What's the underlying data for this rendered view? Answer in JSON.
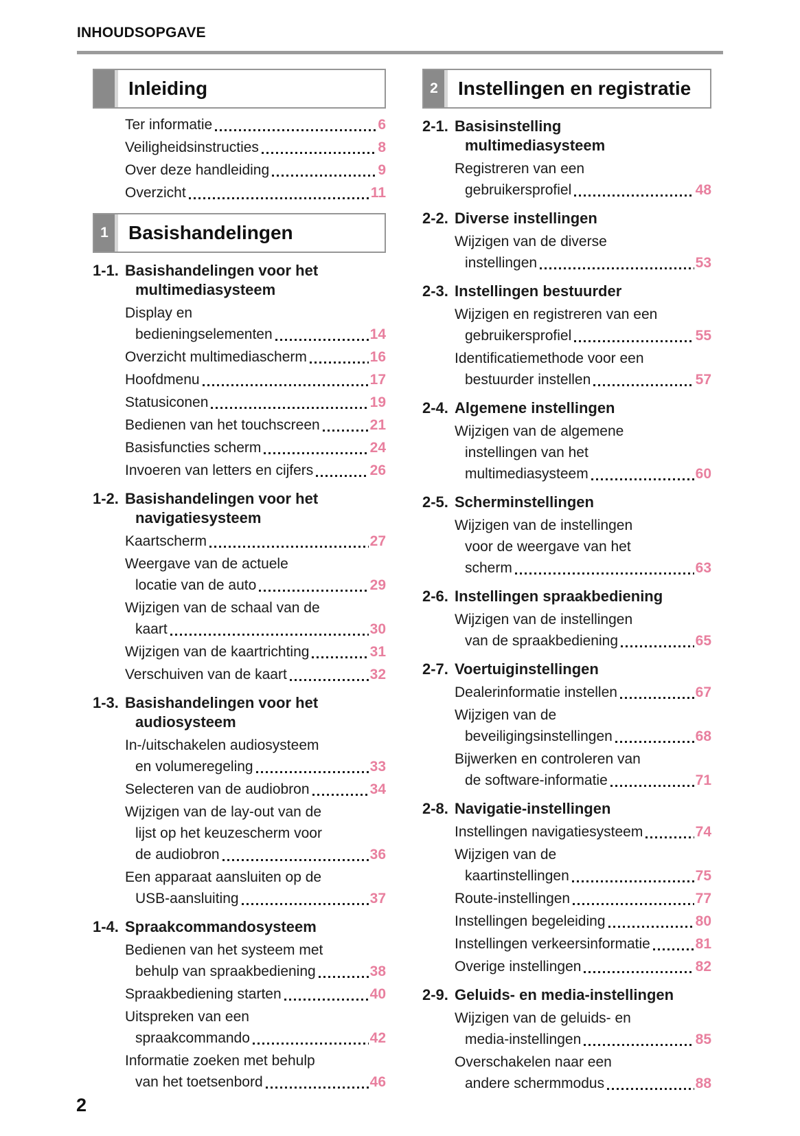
{
  "page": {
    "header": "INHOUDSOPGAVE",
    "footer_page_number": "2",
    "accent_color": "#e87f9e",
    "tab_color": "#8a8a8a"
  },
  "columns": [
    {
      "blocks": [
        {
          "tab": "",
          "title": "Inleiding",
          "entries": [
            {
              "lines": [
                "Ter informatie"
              ],
              "page": "6"
            },
            {
              "lines": [
                "Veiligheidsinstructies"
              ],
              "page": "8"
            },
            {
              "lines": [
                "Over deze handleiding"
              ],
              "page": "9"
            },
            {
              "lines": [
                "Overzicht"
              ],
              "page": "11"
            }
          ],
          "sections": []
        },
        {
          "tab": "1",
          "title": "Basishandelingen",
          "entries": [],
          "sections": [
            {
              "number": "1-1.",
              "title_lines": [
                "Basishandelingen voor het",
                "multimediasysteem"
              ],
              "entries": [
                {
                  "lines": [
                    "Display en",
                    "bedieningselementen"
                  ],
                  "page": "14"
                },
                {
                  "lines": [
                    "Overzicht multimediascherm"
                  ],
                  "page": "16"
                },
                {
                  "lines": [
                    "Hoofdmenu"
                  ],
                  "page": "17"
                },
                {
                  "lines": [
                    "Statusiconen"
                  ],
                  "page": "19"
                },
                {
                  "lines": [
                    "Bedienen van het touchscreen"
                  ],
                  "page": "21"
                },
                {
                  "lines": [
                    "Basisfuncties scherm"
                  ],
                  "page": "24"
                },
                {
                  "lines": [
                    "Invoeren van letters en cijfers"
                  ],
                  "page": "26"
                }
              ]
            },
            {
              "number": "1-2.",
              "title_lines": [
                "Basishandelingen voor het",
                "navigatiesysteem"
              ],
              "entries": [
                {
                  "lines": [
                    "Kaartscherm"
                  ],
                  "page": "27"
                },
                {
                  "lines": [
                    "Weergave van de actuele",
                    "locatie van de auto"
                  ],
                  "page": "29"
                },
                {
                  "lines": [
                    "Wijzigen van de schaal van de",
                    "kaart"
                  ],
                  "page": "30"
                },
                {
                  "lines": [
                    "Wijzigen van de kaartrichting"
                  ],
                  "page": "31"
                },
                {
                  "lines": [
                    "Verschuiven van de kaart"
                  ],
                  "page": "32"
                }
              ]
            },
            {
              "number": "1-3.",
              "title_lines": [
                "Basishandelingen voor het",
                "audiosysteem"
              ],
              "entries": [
                {
                  "lines": [
                    "In-/uitschakelen audiosysteem",
                    "en volumeregeling"
                  ],
                  "page": "33"
                },
                {
                  "lines": [
                    "Selecteren van de audiobron"
                  ],
                  "page": "34"
                },
                {
                  "lines": [
                    "Wijzigen van de lay-out van de",
                    "lijst op het keuzescherm voor",
                    "de audiobron"
                  ],
                  "page": "36"
                },
                {
                  "lines": [
                    "Een apparaat aansluiten op de",
                    "USB-aansluiting"
                  ],
                  "page": "37"
                }
              ]
            },
            {
              "number": "1-4.",
              "title_lines": [
                "Spraakcommandosysteem"
              ],
              "entries": [
                {
                  "lines": [
                    "Bedienen van het systeem met",
                    "behulp van spraakbediening"
                  ],
                  "page": "38"
                },
                {
                  "lines": [
                    "Spraakbediening starten"
                  ],
                  "page": "40"
                },
                {
                  "lines": [
                    "Uitspreken van een",
                    "spraakcommando"
                  ],
                  "page": "42"
                },
                {
                  "lines": [
                    "Informatie zoeken met behulp",
                    "van het toetsenbord"
                  ],
                  "page": "46"
                }
              ]
            }
          ]
        }
      ]
    },
    {
      "blocks": [
        {
          "tab": "2",
          "title": "Instellingen en registratie",
          "entries": [],
          "sections": [
            {
              "number": "2-1.",
              "title_lines": [
                "Basisinstelling",
                "multimediasysteem"
              ],
              "entries": [
                {
                  "lines": [
                    "Registreren van een",
                    "gebruikersprofiel"
                  ],
                  "page": "48"
                }
              ]
            },
            {
              "number": "2-2.",
              "title_lines": [
                "Diverse instellingen"
              ],
              "entries": [
                {
                  "lines": [
                    "Wijzigen van de diverse",
                    "instellingen"
                  ],
                  "page": "53"
                }
              ]
            },
            {
              "number": "2-3.",
              "title_lines": [
                "Instellingen bestuurder"
              ],
              "entries": [
                {
                  "lines": [
                    "Wijzigen en registreren van een",
                    "gebruikersprofiel"
                  ],
                  "page": "55"
                },
                {
                  "lines": [
                    "Identificatiemethode voor een",
                    "bestuurder instellen"
                  ],
                  "page": "57"
                }
              ]
            },
            {
              "number": "2-4.",
              "title_lines": [
                "Algemene instellingen"
              ],
              "entries": [
                {
                  "lines": [
                    "Wijzigen van de algemene",
                    "instellingen van het",
                    "multimediasysteem"
                  ],
                  "page": "60"
                }
              ]
            },
            {
              "number": "2-5.",
              "title_lines": [
                "Scherminstellingen"
              ],
              "entries": [
                {
                  "lines": [
                    "Wijzigen van de instellingen",
                    "voor de weergave van het",
                    "scherm"
                  ],
                  "page": "63"
                }
              ]
            },
            {
              "number": "2-6.",
              "title_lines": [
                "Instellingen spraakbediening"
              ],
              "entries": [
                {
                  "lines": [
                    "Wijzigen van de instellingen",
                    "van de spraakbediening"
                  ],
                  "page": "65"
                }
              ]
            },
            {
              "number": "2-7.",
              "title_lines": [
                "Voertuiginstellingen"
              ],
              "entries": [
                {
                  "lines": [
                    "Dealerinformatie instellen"
                  ],
                  "page": "67"
                },
                {
                  "lines": [
                    "Wijzigen van de",
                    "beveiligingsinstellingen"
                  ],
                  "page": "68"
                },
                {
                  "lines": [
                    "Bijwerken en controleren van",
                    "de software-informatie"
                  ],
                  "page": "71"
                }
              ]
            },
            {
              "number": "2-8.",
              "title_lines": [
                "Navigatie-instellingen"
              ],
              "entries": [
                {
                  "lines": [
                    "Instellingen navigatiesysteem"
                  ],
                  "page": "74"
                },
                {
                  "lines": [
                    "Wijzigen van de",
                    "kaartinstellingen"
                  ],
                  "page": "75"
                },
                {
                  "lines": [
                    "Route-instellingen"
                  ],
                  "page": "77"
                },
                {
                  "lines": [
                    "Instellingen begeleiding"
                  ],
                  "page": "80"
                },
                {
                  "lines": [
                    "Instellingen verkeersinformatie"
                  ],
                  "page": "81"
                },
                {
                  "lines": [
                    "Overige instellingen"
                  ],
                  "page": "82"
                }
              ]
            },
            {
              "number": "2-9.",
              "title_lines": [
                "Geluids- en media-instellingen"
              ],
              "entries": [
                {
                  "lines": [
                    "Wijzigen van de geluids- en",
                    "media-instellingen"
                  ],
                  "page": "85"
                },
                {
                  "lines": [
                    "Overschakelen naar een",
                    "andere schermmodus"
                  ],
                  "page": "88"
                }
              ]
            }
          ]
        }
      ]
    }
  ]
}
